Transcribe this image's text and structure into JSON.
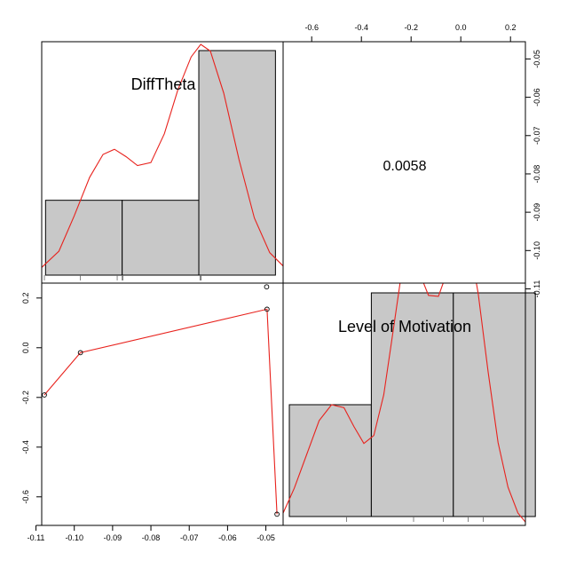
{
  "chart_data": {
    "type": "pairs",
    "variables": [
      "DiffTheta",
      "Level of Motivation"
    ],
    "correlation": "0.0058",
    "ticks": {
      "difftheta": [
        "-0.11",
        "-0.10",
        "-0.09",
        "-0.08",
        "-0.07",
        "-0.06",
        "-0.05"
      ],
      "motivation": [
        "-0.6",
        "-0.4",
        "-0.2",
        "0.0",
        "0.2"
      ]
    },
    "tick_values": {
      "difftheta": [
        -0.11,
        -0.1,
        -0.09,
        -0.08,
        -0.07,
        -0.06,
        -0.05
      ],
      "motivation": [
        -0.6,
        -0.4,
        -0.2,
        0.0,
        0.2
      ]
    },
    "difftheta_range": [
      -0.1085,
      -0.0455
    ],
    "motivation_range": [
      -0.715,
      0.26
    ],
    "scatter_points": [
      {
        "x": -0.1078,
        "y": -0.19
      },
      {
        "x": -0.0984,
        "y": -0.02
      },
      {
        "x": -0.0497,
        "y": 0.155
      },
      {
        "x": -0.0498,
        "y": 0.245
      },
      {
        "x": -0.0471,
        "y": -0.67
      }
    ],
    "scatter_smooth": [
      {
        "x": -0.1078,
        "y": -0.19
      },
      {
        "x": -0.0984,
        "y": -0.02
      },
      {
        "x": -0.0497,
        "y": 0.155
      },
      {
        "x": -0.0471,
        "y": -0.67
      }
    ],
    "hist_difftheta": {
      "bins": [
        [
          -0.1075,
          -0.0875
        ],
        [
          -0.0875,
          -0.0675
        ],
        [
          -0.0675,
          -0.0475
        ]
      ],
      "heights": [
        1,
        1,
        3
      ],
      "rug": [
        -0.1078,
        -0.0984,
        -0.0888,
        -0.0875,
        -0.0873,
        -0.0672,
        -0.0669,
        -0.0669
      ]
    },
    "density_difftheta": [
      {
        "x": -0.1085,
        "y": 0.02
      },
      {
        "x": -0.104,
        "y": 0.24
      },
      {
        "x": -0.1,
        "y": 0.72
      },
      {
        "x": -0.096,
        "y": 1.24
      },
      {
        "x": -0.0925,
        "y": 1.55
      },
      {
        "x": -0.0895,
        "y": 1.62
      },
      {
        "x": -0.0865,
        "y": 1.52
      },
      {
        "x": -0.0835,
        "y": 1.4
      },
      {
        "x": -0.08,
        "y": 1.44
      },
      {
        "x": -0.0765,
        "y": 1.83
      },
      {
        "x": -0.073,
        "y": 2.42
      },
      {
        "x": -0.0695,
        "y": 2.87
      },
      {
        "x": -0.067,
        "y": 3.04
      },
      {
        "x": -0.0645,
        "y": 2.95
      },
      {
        "x": -0.061,
        "y": 2.38
      },
      {
        "x": -0.057,
        "y": 1.48
      },
      {
        "x": -0.053,
        "y": 0.69
      },
      {
        "x": -0.049,
        "y": 0.22
      },
      {
        "x": -0.0455,
        "y": 0.04
      }
    ],
    "hist_motivation": {
      "bins": [
        [
          -0.69,
          -0.36
        ],
        [
          -0.36,
          -0.03
        ],
        [
          -0.03,
          0.3
        ]
      ],
      "heights": [
        1,
        2,
        2
      ],
      "rug": [
        -0.46,
        -0.19,
        -0.07,
        0.03,
        0.09
      ]
    },
    "density_motivation": [
      {
        "x": -0.715,
        "y": 0.16
      },
      {
        "x": -0.67,
        "y": 0.41
      },
      {
        "x": -0.62,
        "y": 0.75
      },
      {
        "x": -0.57,
        "y": 1.09
      },
      {
        "x": -0.52,
        "y": 1.25
      },
      {
        "x": -0.47,
        "y": 1.22
      },
      {
        "x": -0.43,
        "y": 1.03
      },
      {
        "x": -0.39,
        "y": 0.86
      },
      {
        "x": -0.35,
        "y": 0.94
      },
      {
        "x": -0.31,
        "y": 1.35
      },
      {
        "x": -0.27,
        "y": 2.03
      },
      {
        "x": -0.24,
        "y": 2.55
      },
      {
        "x": -0.205,
        "y": 2.7
      },
      {
        "x": -0.17,
        "y": 2.6
      },
      {
        "x": -0.13,
        "y": 2.35
      },
      {
        "x": -0.09,
        "y": 2.34
      },
      {
        "x": -0.05,
        "y": 2.62
      },
      {
        "x": -0.01,
        "y": 2.96
      },
      {
        "x": 0.03,
        "y": 2.94
      },
      {
        "x": 0.07,
        "y": 2.37
      },
      {
        "x": 0.11,
        "y": 1.58
      },
      {
        "x": 0.15,
        "y": 0.87
      },
      {
        "x": 0.19,
        "y": 0.42
      },
      {
        "x": 0.23,
        "y": 0.16
      },
      {
        "x": 0.26,
        "y": 0.07
      }
    ],
    "colors": {
      "bar_fill": "#c8c8c8",
      "line": "#e8221d",
      "axis": "#000000"
    }
  }
}
